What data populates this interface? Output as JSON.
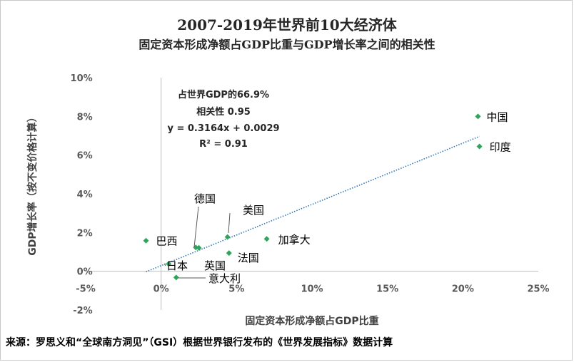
{
  "chart_data": {
    "type": "scatter",
    "title": "2007-2019年世界前10大经济体",
    "subtitle": "固定资本形成净额占GDP比重与GDP增长率之间的相关性",
    "xlabel": "固定资本形成净额占GDP比重",
    "ylabel": "GDP增长率（按不变价格计算）",
    "xlim": [
      -0.05,
      0.25
    ],
    "ylim": [
      -0.02,
      0.1
    ],
    "x_ticks": [
      -0.05,
      0,
      0.05,
      0.1,
      0.15,
      0.2,
      0.25
    ],
    "x_tick_labels": [
      "-5%",
      "0%",
      "5%",
      "10%",
      "15%",
      "20%",
      "25%"
    ],
    "y_ticks": [
      -0.02,
      0,
      0.02,
      0.04,
      0.06,
      0.08,
      0.1
    ],
    "y_tick_labels": [
      "-2%",
      "0%",
      "2%",
      "4%",
      "6%",
      "8%",
      "10%"
    ],
    "marker_color": "#2ea55a",
    "trendline_color": "#2e75b6",
    "points": [
      {
        "name": "中国",
        "x": 0.21,
        "y": 0.08
      },
      {
        "name": "印度",
        "x": 0.211,
        "y": 0.0645
      },
      {
        "name": "美国",
        "x": 0.044,
        "y": 0.0177
      },
      {
        "name": "加拿大",
        "x": 0.07,
        "y": 0.0167
      },
      {
        "name": "巴西",
        "x": -0.01,
        "y": 0.0158
      },
      {
        "name": "德国",
        "x": 0.023,
        "y": 0.0123
      },
      {
        "name": "英国",
        "x": 0.025,
        "y": 0.0121
      },
      {
        "name": "法国",
        "x": 0.045,
        "y": 0.0094
      },
      {
        "name": "日本",
        "x": 0.005,
        "y": 0.0038
      },
      {
        "name": "意大利",
        "x": 0.01,
        "y": -0.0032
      }
    ],
    "trendline": {
      "slope": 0.3164,
      "intercept": 0.0029,
      "x_range": [
        -0.01,
        0.211
      ]
    },
    "annotations": [
      "占世界GDP的66.9%",
      "相关性   0.95",
      "y = 0.3164x + 0.0029",
      "R² = 0.91"
    ]
  },
  "source": "来源：罗思义和“全球南方洞见”（GSI）根据世界银行发布的《世界发展指标》数据计算"
}
